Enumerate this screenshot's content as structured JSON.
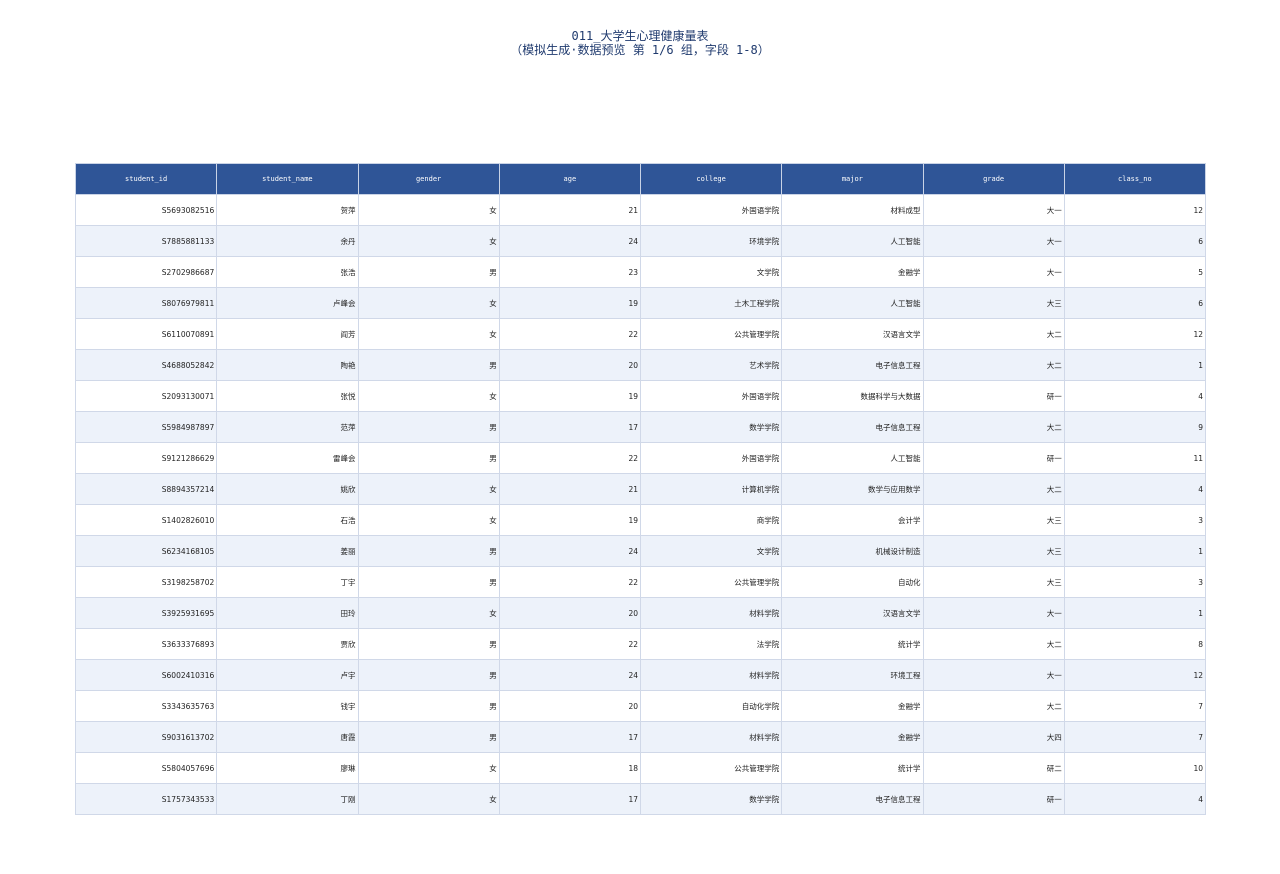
{
  "header": {
    "title": "011_大学生心理健康量表",
    "subtitle": "（模拟生成·数据预览 第 1/6 组，字段 1-8）"
  },
  "table": {
    "columns": [
      "student_id",
      "student_name",
      "gender",
      "age",
      "college",
      "major",
      "grade",
      "class_no"
    ],
    "rows": [
      [
        "S5693082516",
        "贺萍",
        "女",
        21,
        "外国语学院",
        "材料成型",
        "大一",
        12
      ],
      [
        "S7885881133",
        "余丹",
        "女",
        24,
        "环境学院",
        "人工智能",
        "大一",
        6
      ],
      [
        "S2702986687",
        "张浩",
        "男",
        23,
        "文学院",
        "金融学",
        "大一",
        5
      ],
      [
        "S8076979811",
        "卢峰会",
        "女",
        19,
        "土木工程学院",
        "人工智能",
        "大三",
        6
      ],
      [
        "S6110070891",
        "阎芳",
        "女",
        22,
        "公共管理学院",
        "汉语言文学",
        "大二",
        12
      ],
      [
        "S4688052842",
        "陶艳",
        "男",
        20,
        "艺术学院",
        "电子信息工程",
        "大二",
        1
      ],
      [
        "S2093130071",
        "张悦",
        "女",
        19,
        "外国语学院",
        "数据科学与大数据",
        "研一",
        4
      ],
      [
        "S5984987897",
        "范萍",
        "男",
        17,
        "数学学院",
        "电子信息工程",
        "大二",
        9
      ],
      [
        "S9121286629",
        "雷峰会",
        "男",
        22,
        "外国语学院",
        "人工智能",
        "研一",
        11
      ],
      [
        "S8894357214",
        "姚欣",
        "女",
        21,
        "计算机学院",
        "数学与应用数学",
        "大二",
        4
      ],
      [
        "S1402826010",
        "石浩",
        "女",
        19,
        "商学院",
        "会计学",
        "大三",
        3
      ],
      [
        "S6234168105",
        "姜丽",
        "男",
        24,
        "文学院",
        "机械设计制造",
        "大三",
        1
      ],
      [
        "S3198258702",
        "丁宇",
        "男",
        22,
        "公共管理学院",
        "自动化",
        "大三",
        3
      ],
      [
        "S3925931695",
        "田玲",
        "女",
        20,
        "材料学院",
        "汉语言文学",
        "大一",
        1
      ],
      [
        "S3633376893",
        "贾欣",
        "男",
        22,
        "法学院",
        "统计学",
        "大二",
        8
      ],
      [
        "S6002410316",
        "卢宇",
        "男",
        24,
        "材料学院",
        "环境工程",
        "大一",
        12
      ],
      [
        "S3343635763",
        "钱宇",
        "男",
        20,
        "自动化学院",
        "金融学",
        "大二",
        7
      ],
      [
        "S9031613702",
        "唐霞",
        "男",
        17,
        "材料学院",
        "金融学",
        "大四",
        7
      ],
      [
        "S5804057696",
        "廖琳",
        "女",
        18,
        "公共管理学院",
        "统计学",
        "研二",
        10
      ],
      [
        "S1757343533",
        "丁刚",
        "女",
        17,
        "数学学院",
        "电子信息工程",
        "研一",
        4
      ]
    ]
  }
}
